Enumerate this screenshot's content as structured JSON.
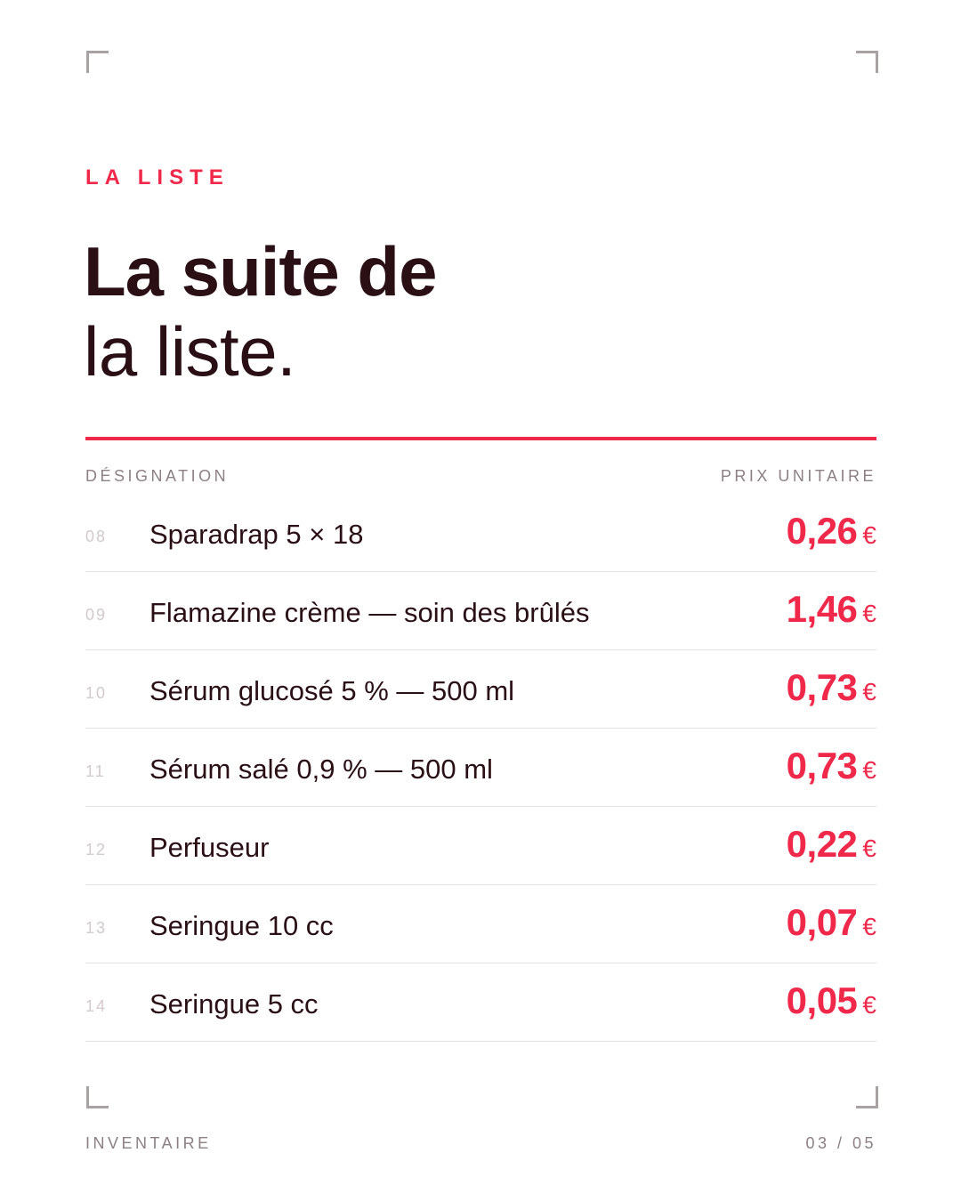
{
  "header": {
    "kicker": "LA LISTE",
    "title_bold": "La suite de",
    "title_light": "la liste."
  },
  "table": {
    "col_left": "DÉSIGNATION",
    "col_right": "PRIX UNITAIRE",
    "currency": "€",
    "rows": [
      {
        "num": "08",
        "name": "Sparadrap 5 × 18",
        "price": "0,26"
      },
      {
        "num": "09",
        "name": "Flamazine crème — soin des brûlés",
        "price": "1,46"
      },
      {
        "num": "10",
        "name": "Sérum glucosé 5 % — 500 ml",
        "price": "0,73"
      },
      {
        "num": "11",
        "name": "Sérum salé 0,9 % — 500 ml",
        "price": "0,73"
      },
      {
        "num": "12",
        "name": "Perfuseur",
        "price": "0,22"
      },
      {
        "num": "13",
        "name": "Seringue 10 cc",
        "price": "0,07"
      },
      {
        "num": "14",
        "name": "Seringue 5 cc",
        "price": "0,05"
      }
    ]
  },
  "footer": {
    "left": "INVENTAIRE",
    "page": "03 / 05"
  },
  "colors": {
    "accent": "#f0284a",
    "ink": "#2a0f14",
    "muted": "#8d8083"
  }
}
